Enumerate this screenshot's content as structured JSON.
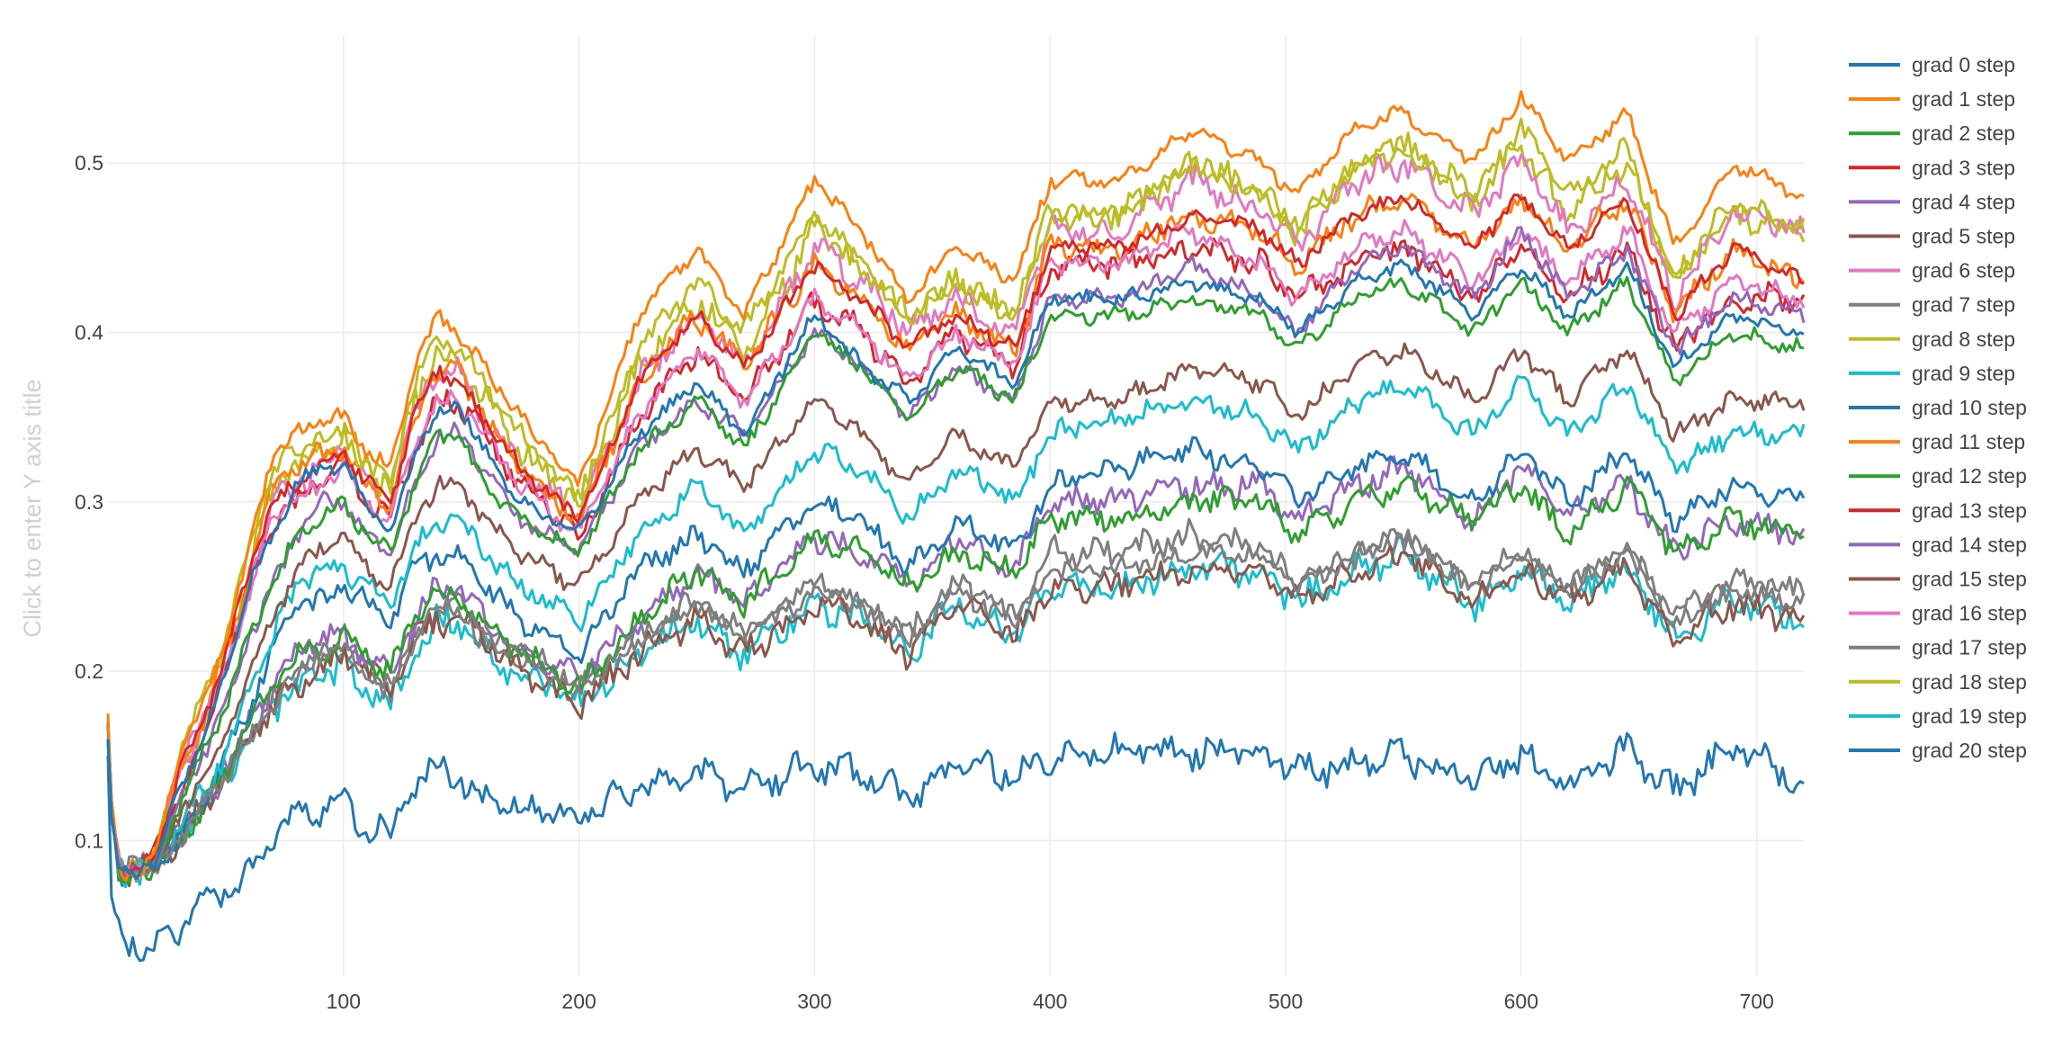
{
  "chart_data": {
    "type": "line",
    "title": "",
    "xlabel": "",
    "ylabel": "",
    "ylabel_placeholder": "Click to enter Y axis title",
    "xlim": [
      0,
      720
    ],
    "ylim": [
      0.02,
      0.575
    ],
    "x_ticks": [
      100,
      200,
      300,
      400,
      500,
      600,
      700
    ],
    "y_ticks": [
      0.1,
      0.2,
      0.3,
      0.4,
      0.5
    ],
    "grid": true,
    "legend_position": "right",
    "x_shape": [
      0,
      1,
      5,
      10,
      15,
      20,
      30,
      40,
      50,
      60,
      70,
      80,
      90,
      100,
      110,
      120,
      130,
      140,
      148,
      160,
      175,
      200,
      225,
      250,
      270,
      300,
      320,
      340,
      360,
      385,
      400,
      430,
      460,
      490,
      505,
      530,
      550,
      580,
      600,
      620,
      645,
      665,
      690,
      720
    ],
    "series": [
      {
        "name": "grad 0 step",
        "color": "#1f77b4",
        "values": [
          0.16,
          0.12,
          0.08,
          0.08,
          0.085,
          0.085,
          0.13,
          0.16,
          0.2,
          0.25,
          0.28,
          0.31,
          0.32,
          0.32,
          0.3,
          0.28,
          0.33,
          0.35,
          0.36,
          0.33,
          0.3,
          0.28,
          0.34,
          0.37,
          0.34,
          0.41,
          0.38,
          0.36,
          0.39,
          0.37,
          0.42,
          0.42,
          0.43,
          0.42,
          0.4,
          0.43,
          0.44,
          0.41,
          0.44,
          0.41,
          0.44,
          0.38,
          0.41,
          0.4
        ]
      },
      {
        "name": "grad 1 step",
        "color": "#ff7f0e",
        "values": [
          0.175,
          0.13,
          0.08,
          0.08,
          0.085,
          0.09,
          0.15,
          0.18,
          0.22,
          0.27,
          0.33,
          0.34,
          0.35,
          0.35,
          0.33,
          0.32,
          0.38,
          0.41,
          0.4,
          0.38,
          0.35,
          0.31,
          0.41,
          0.45,
          0.41,
          0.49,
          0.46,
          0.42,
          0.45,
          0.43,
          0.49,
          0.49,
          0.52,
          0.5,
          0.48,
          0.52,
          0.53,
          0.5,
          0.54,
          0.5,
          0.53,
          0.45,
          0.5,
          0.48
        ]
      },
      {
        "name": "grad 2 step",
        "color": "#2ca02c",
        "values": [
          0.17,
          0.12,
          0.08,
          0.08,
          0.085,
          0.085,
          0.12,
          0.15,
          0.18,
          0.22,
          0.25,
          0.28,
          0.29,
          0.3,
          0.28,
          0.27,
          0.31,
          0.34,
          0.34,
          0.31,
          0.29,
          0.27,
          0.33,
          0.36,
          0.33,
          0.4,
          0.38,
          0.35,
          0.38,
          0.36,
          0.41,
          0.41,
          0.42,
          0.41,
          0.39,
          0.42,
          0.43,
          0.4,
          0.43,
          0.4,
          0.43,
          0.37,
          0.4,
          0.39
        ]
      },
      {
        "name": "grad 3 step",
        "color": "#d62728",
        "values": [
          0.17,
          0.13,
          0.08,
          0.08,
          0.085,
          0.09,
          0.14,
          0.17,
          0.21,
          0.26,
          0.3,
          0.31,
          0.32,
          0.33,
          0.31,
          0.3,
          0.35,
          0.38,
          0.37,
          0.35,
          0.32,
          0.29,
          0.37,
          0.41,
          0.38,
          0.44,
          0.42,
          0.39,
          0.41,
          0.39,
          0.45,
          0.45,
          0.47,
          0.46,
          0.44,
          0.47,
          0.48,
          0.45,
          0.48,
          0.45,
          0.48,
          0.41,
          0.45,
          0.43
        ]
      },
      {
        "name": "grad 4 step",
        "color": "#9467bd",
        "values": [
          0.17,
          0.12,
          0.08,
          0.08,
          0.085,
          0.085,
          0.12,
          0.15,
          0.18,
          0.22,
          0.25,
          0.28,
          0.3,
          0.3,
          0.28,
          0.27,
          0.31,
          0.34,
          0.34,
          0.32,
          0.29,
          0.27,
          0.33,
          0.36,
          0.34,
          0.4,
          0.38,
          0.35,
          0.38,
          0.36,
          0.42,
          0.42,
          0.44,
          0.42,
          0.4,
          0.44,
          0.45,
          0.42,
          0.46,
          0.42,
          0.45,
          0.39,
          0.42,
          0.41
        ]
      },
      {
        "name": "grad 5 step",
        "color": "#8c564b",
        "values": [
          0.17,
          0.12,
          0.08,
          0.08,
          0.085,
          0.085,
          0.11,
          0.14,
          0.16,
          0.2,
          0.23,
          0.26,
          0.27,
          0.28,
          0.26,
          0.25,
          0.29,
          0.31,
          0.31,
          0.29,
          0.27,
          0.25,
          0.3,
          0.33,
          0.31,
          0.36,
          0.34,
          0.31,
          0.34,
          0.32,
          0.36,
          0.36,
          0.38,
          0.37,
          0.35,
          0.38,
          0.39,
          0.36,
          0.39,
          0.36,
          0.39,
          0.34,
          0.36,
          0.36
        ]
      },
      {
        "name": "grad 6 step",
        "color": "#e377c2",
        "values": [
          0.17,
          0.13,
          0.08,
          0.08,
          0.085,
          0.09,
          0.14,
          0.17,
          0.2,
          0.25,
          0.29,
          0.3,
          0.31,
          0.32,
          0.3,
          0.29,
          0.33,
          0.36,
          0.36,
          0.34,
          0.31,
          0.28,
          0.35,
          0.39,
          0.36,
          0.42,
          0.4,
          0.37,
          0.4,
          0.38,
          0.44,
          0.44,
          0.46,
          0.44,
          0.42,
          0.45,
          0.46,
          0.43,
          0.46,
          0.43,
          0.46,
          0.4,
          0.43,
          0.42
        ]
      },
      {
        "name": "grad 7 step",
        "color": "#7f7f7f",
        "values": [
          0.16,
          0.12,
          0.08,
          0.08,
          0.085,
          0.085,
          0.1,
          0.12,
          0.14,
          0.16,
          0.18,
          0.2,
          0.21,
          0.21,
          0.2,
          0.19,
          0.22,
          0.24,
          0.24,
          0.22,
          0.21,
          0.19,
          0.22,
          0.24,
          0.22,
          0.25,
          0.24,
          0.22,
          0.25,
          0.23,
          0.26,
          0.26,
          0.27,
          0.27,
          0.25,
          0.27,
          0.28,
          0.25,
          0.27,
          0.25,
          0.27,
          0.23,
          0.25,
          0.24
        ]
      },
      {
        "name": "grad 8 step",
        "color": "#bcbd22",
        "values": [
          0.17,
          0.13,
          0.08,
          0.08,
          0.085,
          0.09,
          0.15,
          0.18,
          0.22,
          0.27,
          0.32,
          0.33,
          0.34,
          0.34,
          0.32,
          0.31,
          0.37,
          0.4,
          0.39,
          0.37,
          0.34,
          0.3,
          0.39,
          0.43,
          0.4,
          0.47,
          0.44,
          0.41,
          0.43,
          0.41,
          0.47,
          0.47,
          0.5,
          0.48,
          0.46,
          0.5,
          0.51,
          0.48,
          0.52,
          0.48,
          0.51,
          0.43,
          0.48,
          0.46
        ]
      },
      {
        "name": "grad 9 step",
        "color": "#17becf",
        "values": [
          0.16,
          0.12,
          0.08,
          0.08,
          0.085,
          0.085,
          0.11,
          0.13,
          0.15,
          0.19,
          0.22,
          0.25,
          0.26,
          0.26,
          0.25,
          0.24,
          0.27,
          0.29,
          0.29,
          0.27,
          0.25,
          0.23,
          0.28,
          0.31,
          0.28,
          0.33,
          0.32,
          0.29,
          0.32,
          0.3,
          0.34,
          0.35,
          0.36,
          0.35,
          0.33,
          0.36,
          0.37,
          0.34,
          0.37,
          0.34,
          0.37,
          0.32,
          0.34,
          0.34
        ]
      },
      {
        "name": "grad 10 step",
        "color": "#1f77b4",
        "values": [
          0.16,
          0.12,
          0.08,
          0.08,
          0.085,
          0.085,
          0.1,
          0.12,
          0.15,
          0.18,
          0.21,
          0.24,
          0.24,
          0.25,
          0.24,
          0.23,
          0.26,
          0.27,
          0.27,
          0.25,
          0.23,
          0.21,
          0.26,
          0.28,
          0.26,
          0.3,
          0.29,
          0.26,
          0.29,
          0.27,
          0.31,
          0.32,
          0.33,
          0.32,
          0.3,
          0.32,
          0.33,
          0.3,
          0.33,
          0.3,
          0.33,
          0.29,
          0.31,
          0.3
        ]
      },
      {
        "name": "grad 11 step",
        "color": "#ff7f0e",
        "values": [
          0.17,
          0.13,
          0.08,
          0.08,
          0.085,
          0.09,
          0.14,
          0.17,
          0.21,
          0.26,
          0.31,
          0.32,
          0.33,
          0.33,
          0.31,
          0.3,
          0.35,
          0.38,
          0.38,
          0.35,
          0.32,
          0.29,
          0.37,
          0.41,
          0.38,
          0.44,
          0.42,
          0.39,
          0.41,
          0.39,
          0.45,
          0.45,
          0.47,
          0.46,
          0.44,
          0.47,
          0.48,
          0.45,
          0.48,
          0.45,
          0.48,
          0.41,
          0.45,
          0.43
        ]
      },
      {
        "name": "grad 12 step",
        "color": "#2ca02c",
        "values": [
          0.16,
          0.12,
          0.08,
          0.08,
          0.085,
          0.085,
          0.1,
          0.12,
          0.14,
          0.17,
          0.19,
          0.21,
          0.21,
          0.22,
          0.21,
          0.2,
          0.23,
          0.25,
          0.24,
          0.23,
          0.21,
          0.19,
          0.23,
          0.26,
          0.24,
          0.28,
          0.27,
          0.25,
          0.27,
          0.26,
          0.29,
          0.29,
          0.3,
          0.3,
          0.28,
          0.3,
          0.31,
          0.29,
          0.31,
          0.28,
          0.31,
          0.27,
          0.29,
          0.28
        ]
      },
      {
        "name": "grad 13 step",
        "color": "#d62728",
        "values": [
          0.17,
          0.13,
          0.08,
          0.08,
          0.085,
          0.09,
          0.13,
          0.16,
          0.2,
          0.25,
          0.29,
          0.3,
          0.31,
          0.32,
          0.3,
          0.29,
          0.33,
          0.36,
          0.36,
          0.34,
          0.31,
          0.28,
          0.35,
          0.39,
          0.36,
          0.42,
          0.4,
          0.37,
          0.4,
          0.38,
          0.44,
          0.44,
          0.45,
          0.44,
          0.42,
          0.44,
          0.45,
          0.42,
          0.45,
          0.42,
          0.45,
          0.39,
          0.42,
          0.42
        ]
      },
      {
        "name": "grad 14 step",
        "color": "#9467bd",
        "values": [
          0.16,
          0.12,
          0.08,
          0.08,
          0.085,
          0.085,
          0.1,
          0.12,
          0.14,
          0.17,
          0.19,
          0.21,
          0.22,
          0.22,
          0.21,
          0.2,
          0.23,
          0.25,
          0.25,
          0.23,
          0.21,
          0.2,
          0.23,
          0.26,
          0.24,
          0.28,
          0.27,
          0.25,
          0.28,
          0.26,
          0.3,
          0.3,
          0.31,
          0.31,
          0.29,
          0.31,
          0.32,
          0.29,
          0.32,
          0.29,
          0.31,
          0.27,
          0.29,
          0.28
        ]
      },
      {
        "name": "grad 15 step",
        "color": "#8c564b",
        "values": [
          0.16,
          0.12,
          0.08,
          0.08,
          0.085,
          0.085,
          0.1,
          0.12,
          0.14,
          0.16,
          0.18,
          0.19,
          0.2,
          0.21,
          0.2,
          0.19,
          0.22,
          0.23,
          0.23,
          0.22,
          0.2,
          0.18,
          0.21,
          0.23,
          0.21,
          0.24,
          0.23,
          0.21,
          0.24,
          0.22,
          0.25,
          0.25,
          0.26,
          0.26,
          0.24,
          0.26,
          0.27,
          0.24,
          0.26,
          0.24,
          0.26,
          0.22,
          0.24,
          0.23
        ]
      },
      {
        "name": "grad 16 step",
        "color": "#e377c2",
        "values": [
          0.17,
          0.13,
          0.08,
          0.08,
          0.085,
          0.09,
          0.14,
          0.17,
          0.2,
          0.25,
          0.3,
          0.31,
          0.32,
          0.33,
          0.31,
          0.3,
          0.35,
          0.38,
          0.38,
          0.35,
          0.32,
          0.29,
          0.37,
          0.41,
          0.38,
          0.45,
          0.43,
          0.4,
          0.42,
          0.4,
          0.46,
          0.46,
          0.49,
          0.47,
          0.45,
          0.49,
          0.5,
          0.47,
          0.5,
          0.46,
          0.49,
          0.42,
          0.47,
          0.46
        ]
      },
      {
        "name": "grad 17 step",
        "color": "#7f7f7f",
        "values": [
          0.16,
          0.12,
          0.08,
          0.08,
          0.085,
          0.085,
          0.1,
          0.12,
          0.14,
          0.16,
          0.18,
          0.2,
          0.21,
          0.21,
          0.2,
          0.19,
          0.22,
          0.24,
          0.24,
          0.22,
          0.21,
          0.19,
          0.22,
          0.24,
          0.22,
          0.25,
          0.24,
          0.22,
          0.25,
          0.23,
          0.27,
          0.27,
          0.28,
          0.27,
          0.25,
          0.27,
          0.28,
          0.25,
          0.27,
          0.25,
          0.27,
          0.23,
          0.25,
          0.25
        ]
      },
      {
        "name": "grad 18 step",
        "color": "#bcbd22",
        "values": [
          0.17,
          0.13,
          0.08,
          0.08,
          0.085,
          0.09,
          0.14,
          0.17,
          0.21,
          0.26,
          0.31,
          0.32,
          0.33,
          0.34,
          0.32,
          0.31,
          0.36,
          0.39,
          0.38,
          0.36,
          0.33,
          0.3,
          0.38,
          0.42,
          0.39,
          0.46,
          0.44,
          0.41,
          0.43,
          0.41,
          0.47,
          0.47,
          0.5,
          0.48,
          0.46,
          0.5,
          0.51,
          0.48,
          0.51,
          0.47,
          0.5,
          0.43,
          0.47,
          0.46
        ]
      },
      {
        "name": "grad 19 step",
        "color": "#17becf",
        "values": [
          0.16,
          0.12,
          0.08,
          0.08,
          0.085,
          0.085,
          0.1,
          0.12,
          0.14,
          0.16,
          0.18,
          0.19,
          0.2,
          0.2,
          0.19,
          0.18,
          0.21,
          0.23,
          0.23,
          0.21,
          0.2,
          0.18,
          0.21,
          0.23,
          0.21,
          0.24,
          0.23,
          0.21,
          0.24,
          0.22,
          0.25,
          0.25,
          0.26,
          0.26,
          0.24,
          0.26,
          0.27,
          0.24,
          0.26,
          0.24,
          0.26,
          0.22,
          0.24,
          0.23
        ]
      },
      {
        "name": "grad 20 step",
        "color": "#1f77b4",
        "values": [
          0.15,
          0.07,
          0.045,
          0.04,
          0.038,
          0.037,
          0.05,
          0.065,
          0.07,
          0.08,
          0.1,
          0.115,
          0.12,
          0.12,
          0.11,
          0.105,
          0.13,
          0.145,
          0.135,
          0.125,
          0.12,
          0.115,
          0.13,
          0.14,
          0.13,
          0.145,
          0.14,
          0.125,
          0.145,
          0.14,
          0.15,
          0.155,
          0.15,
          0.155,
          0.14,
          0.145,
          0.15,
          0.135,
          0.15,
          0.13,
          0.155,
          0.13,
          0.155,
          0.135
        ]
      }
    ]
  }
}
